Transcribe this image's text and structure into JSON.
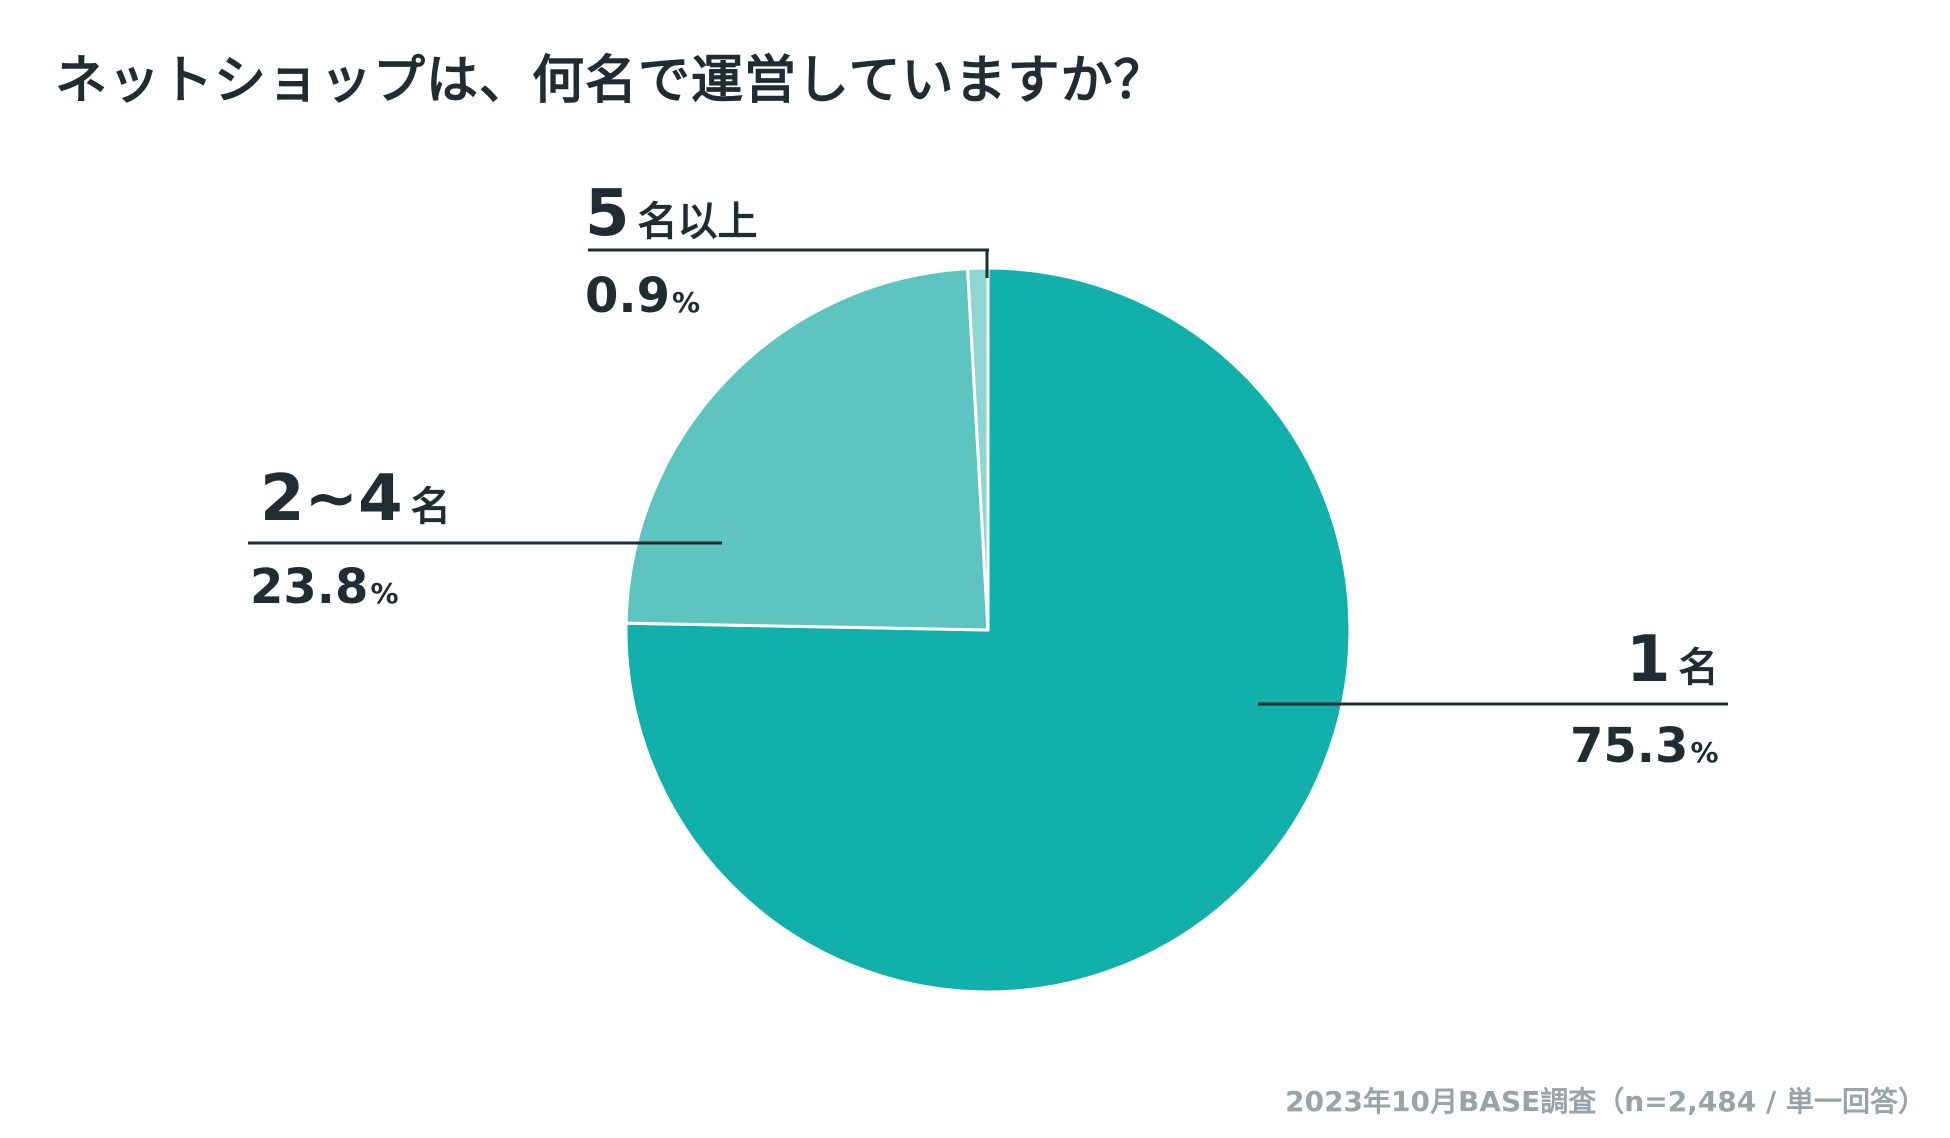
{
  "title": "ネットショップは、何名で運営していますか？",
  "footer": "2023年10月BASE調査（n=2,484 / 単一回答）",
  "colors": {
    "text": "#1f2d33",
    "slice_main": "#12b0ab",
    "slice_light": "#5ec4bf",
    "slice_small": "#8fd6d2",
    "line": "#1f2d33",
    "footer": "#9aa3a8"
  },
  "chart_data": {
    "type": "pie",
    "title": "ネットショップは、何名で運営していますか？",
    "slices": [
      {
        "label": "1名",
        "value": 75.3,
        "color": "#12b0ab"
      },
      {
        "label": "2~4名",
        "value": 23.8,
        "color": "#5ec4bf"
      },
      {
        "label": "5名以上",
        "value": 0.9,
        "color": "#8fd6d2"
      }
    ]
  },
  "labels": {
    "one": {
      "num": "1",
      "unit": "名",
      "pct": "75.3",
      "pct_unit": "%"
    },
    "two_four": {
      "num": "2~4",
      "unit": "名",
      "pct": "23.8",
      "pct_unit": "%"
    },
    "five_plus": {
      "num": "5",
      "unit": "名以上",
      "pct": "0.9",
      "pct_unit": "%"
    }
  }
}
